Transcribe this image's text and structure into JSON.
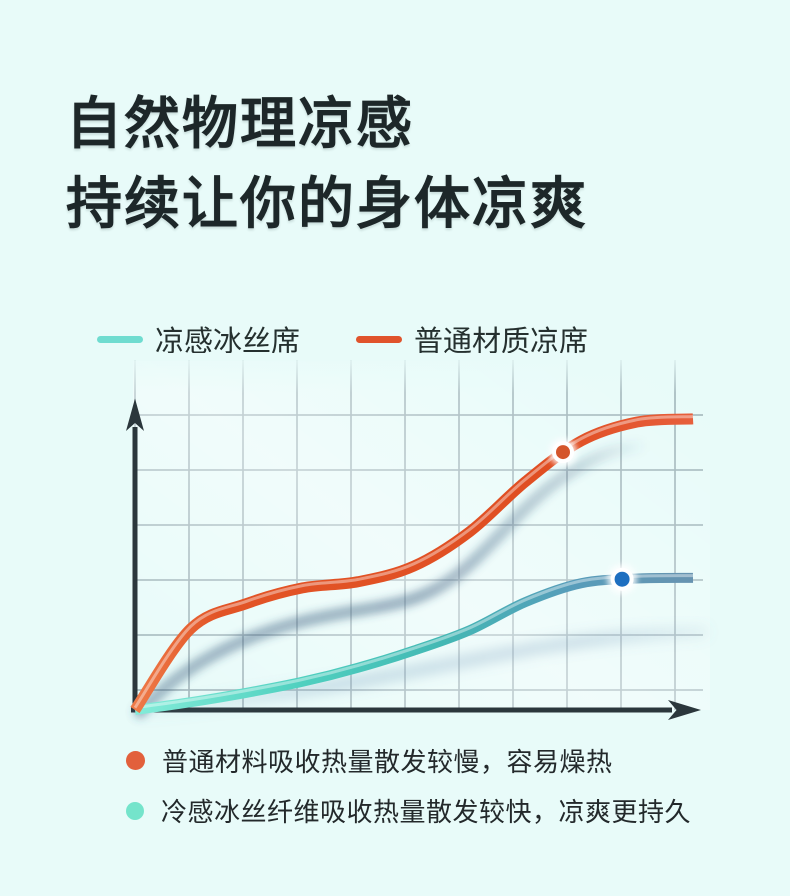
{
  "page": {
    "background_color": "#e8fbf9"
  },
  "title": {
    "line1": "自然物理凉感",
    "line2": "持续让你的身体凉爽"
  },
  "legend": {
    "items": [
      {
        "label": "凉感冰丝席",
        "color": "#6fdcd0"
      },
      {
        "label": "普通材质凉席",
        "color": "#e0532c"
      }
    ]
  },
  "chart_data": {
    "type": "line",
    "title": "",
    "xlabel": "",
    "ylabel": "",
    "x_range": [
      0,
      10
    ],
    "y_range": [
      0,
      100
    ],
    "grid": true,
    "axis_ticks_visible": false,
    "legend_position": "top",
    "x": [
      0,
      1,
      2,
      3,
      4,
      5,
      6,
      7,
      8,
      9,
      10
    ],
    "series": [
      {
        "id": "cool",
        "name": "凉感冰丝席",
        "color": "#6fdcd0",
        "color_end": "#6793b0",
        "values": [
          0,
          2.5,
          5.5,
          9,
          13.5,
          19,
          25.5,
          34.5,
          40.5,
          42,
          42.2
        ]
      },
      {
        "id": "ordinary",
        "name": "普通材质凉席",
        "color": "#e0532c",
        "values": [
          0,
          26,
          34,
          39,
          41,
          46,
          57,
          73,
          86,
          92,
          93
        ]
      }
    ],
    "markers": [
      {
        "series": "ordinary",
        "x": 7.67,
        "value": 82.4,
        "color": "#d4562c"
      },
      {
        "series": "cool",
        "x": 8.73,
        "value": 41.8,
        "color": "#1e6fc0"
      }
    ]
  },
  "notes": {
    "items": [
      {
        "text": "普通材料吸收热量散发较慢，容易燥热",
        "color": "#e2603c"
      },
      {
        "text": "冷感冰丝纤维吸收热量散发较快，凉爽更持久",
        "color": "#74e4cb"
      }
    ]
  }
}
